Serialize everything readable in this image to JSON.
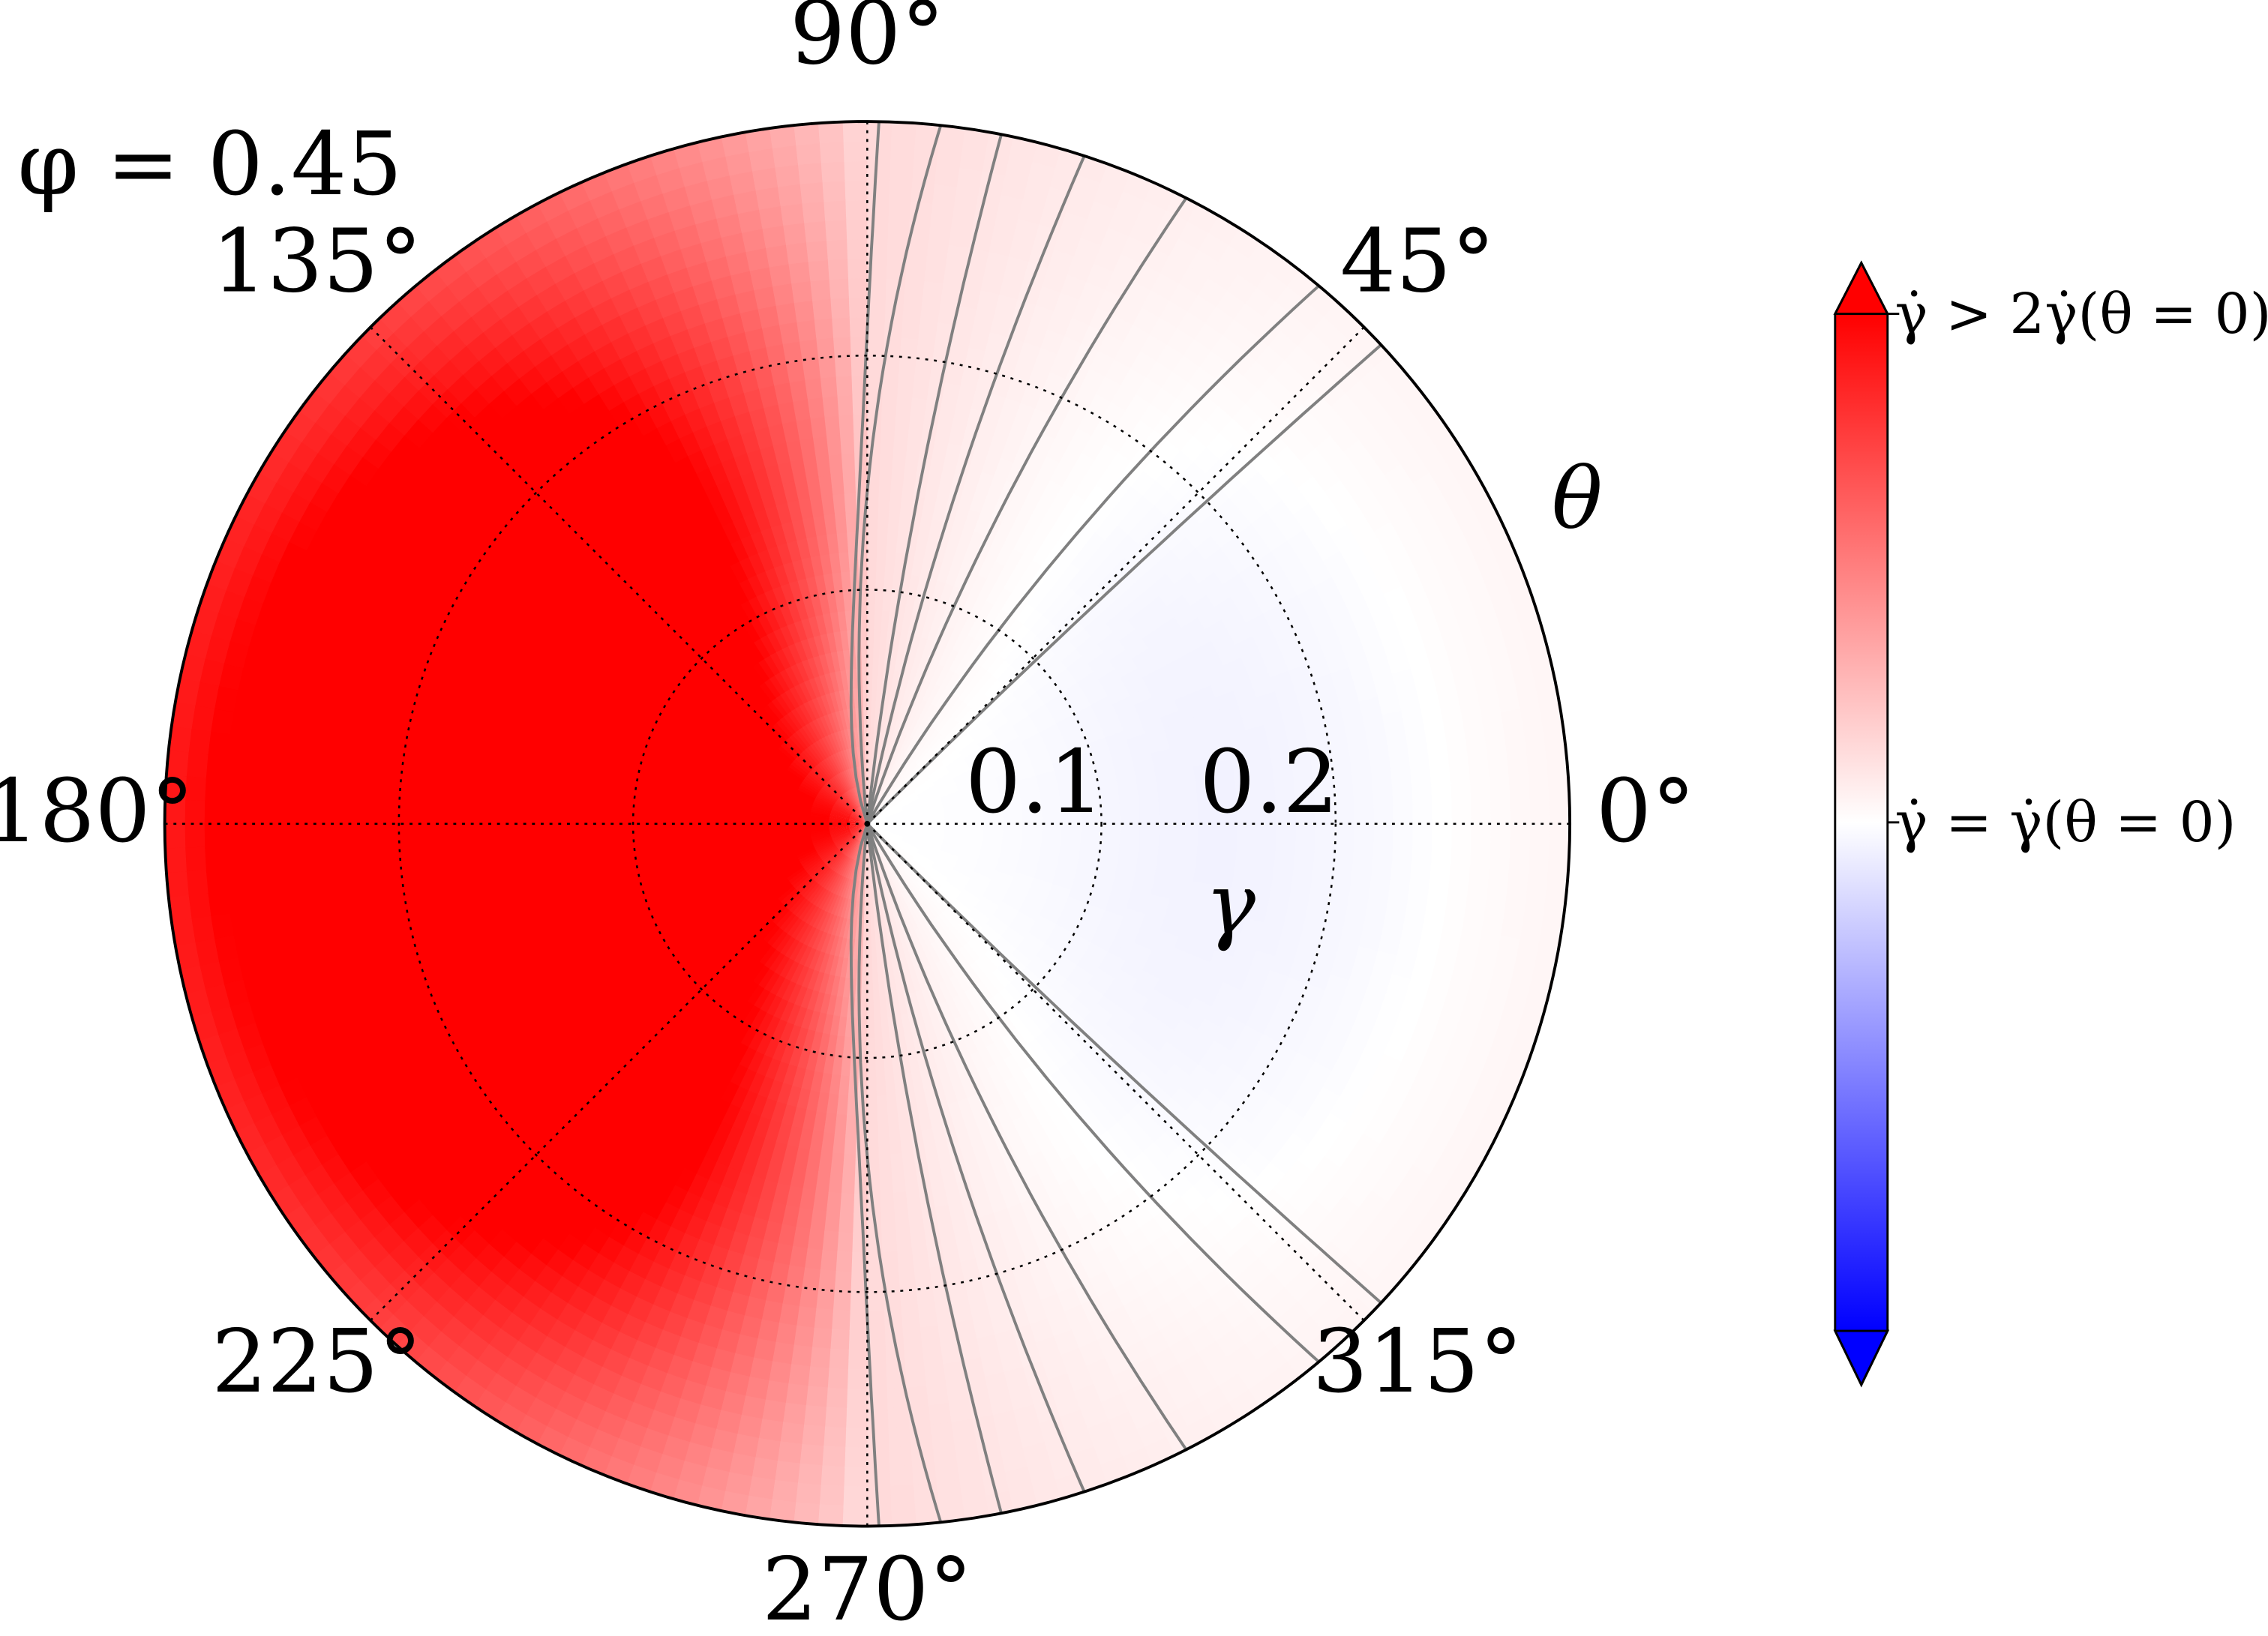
{
  "chart_data": {
    "type": "heatmap",
    "projection": "polar",
    "annotation": "φ = 0.45",
    "angular_label": "θ",
    "radial_label": "γ",
    "angular_ticks": [
      {
        "deg": 0,
        "label": "0°"
      },
      {
        "deg": 45,
        "label": "45°"
      },
      {
        "deg": 90,
        "label": "90°"
      },
      {
        "deg": 135,
        "label": "135°"
      },
      {
        "deg": 180,
        "label": "180°"
      },
      {
        "deg": 225,
        "label": "225°"
      },
      {
        "deg": 270,
        "label": "270°"
      },
      {
        "deg": 315,
        "label": "315°"
      }
    ],
    "radial_ticks": [
      {
        "value": 0.1,
        "label": "0.1"
      },
      {
        "value": 0.2,
        "label": "0.2"
      }
    ],
    "radial_range": [
      0,
      0.3
    ],
    "grid": true,
    "colormap": "bwr",
    "colorbar": {
      "placement": "right",
      "extend": "both",
      "top_label": "γ̇ > 2γ̇(θ = 0)",
      "mid_label": "γ̇ = γ̇(θ = 0)",
      "range_relative": [
        0,
        2
      ]
    },
    "contour_levels_count": 7,
    "colors": {
      "high": "#ff0000",
      "mid": "#ffffff",
      "low": "#0000ff",
      "contour": "#808080"
    }
  }
}
